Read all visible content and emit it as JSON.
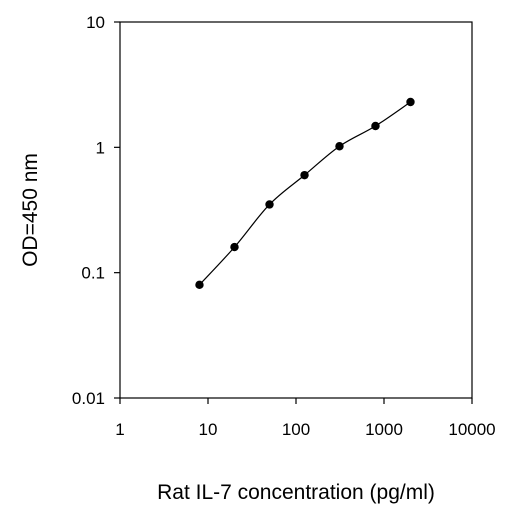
{
  "chart_data": {
    "type": "scatter",
    "title": "",
    "xlabel": "Rat IL-7 concentration (pg/ml)",
    "ylabel": "OD=450 nm",
    "xscale": "log",
    "yscale": "log",
    "xlim": [
      1,
      10000
    ],
    "ylim": [
      0.01,
      10
    ],
    "x_tick_labels": [
      "1",
      "10",
      "100",
      "1000",
      "10000"
    ],
    "y_tick_labels": [
      "0.01",
      "0.1",
      "1",
      "10"
    ],
    "grid": false,
    "legend": "none",
    "series": [
      {
        "x": [
          8,
          20,
          50,
          125,
          312,
          800,
          2000
        ],
        "y": [
          0.08,
          0.16,
          0.35,
          0.6,
          1.02,
          1.48,
          2.3
        ],
        "marker": "circle",
        "line": "smoothed",
        "color": "#000000"
      }
    ]
  }
}
